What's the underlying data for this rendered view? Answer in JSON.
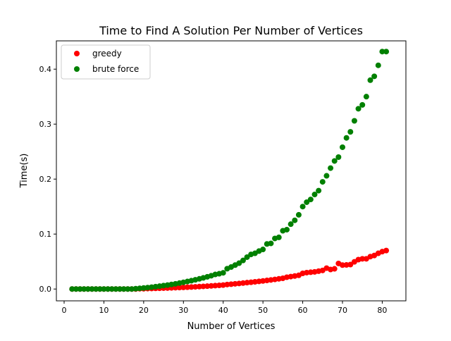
{
  "chart_data": {
    "type": "scatter",
    "title": "Time to Find A Solution Per Number of Vertices",
    "xlabel": "Number of Vertices",
    "ylabel": "Time(s)",
    "xlim": [
      -1.95,
      85.95
    ],
    "ylim": [
      -0.0215,
      0.4515
    ],
    "xticks": [
      0,
      10,
      20,
      30,
      40,
      50,
      60,
      70,
      80
    ],
    "xtick_labels": [
      "0",
      "10",
      "20",
      "30",
      "40",
      "50",
      "60",
      "70",
      "80"
    ],
    "yticks": [
      0.0,
      0.1,
      0.2,
      0.3,
      0.4
    ],
    "ytick_labels": [
      "0.0",
      "0.1",
      "0.2",
      "0.3",
      "0.4"
    ],
    "grid": false,
    "legend_position": "upper-left",
    "x": [
      2,
      3,
      4,
      5,
      6,
      7,
      8,
      9,
      10,
      11,
      12,
      13,
      14,
      15,
      16,
      17,
      18,
      19,
      20,
      21,
      22,
      23,
      24,
      25,
      26,
      27,
      28,
      29,
      30,
      31,
      32,
      33,
      34,
      35,
      36,
      37,
      38,
      39,
      40,
      41,
      42,
      43,
      44,
      45,
      46,
      47,
      48,
      49,
      50,
      51,
      52,
      53,
      54,
      55,
      56,
      57,
      58,
      59,
      60,
      61,
      62,
      63,
      64,
      65,
      66,
      67,
      68,
      69,
      70,
      71,
      72,
      73,
      74,
      75,
      76,
      77,
      78,
      79,
      80,
      81
    ],
    "series": [
      {
        "name": "greedy",
        "color": "#ff0000",
        "values": [
          0,
          0,
          0,
          0,
          0,
          0,
          0,
          0,
          0,
          0,
          0,
          0,
          0,
          0,
          0,
          0,
          0,
          0.0005,
          0.0005,
          0.0008,
          0.001,
          0.0012,
          0.0014,
          0.0016,
          0.0018,
          0.0021,
          0.0024,
          0.0027,
          0.003,
          0.0033,
          0.0036,
          0.004,
          0.0044,
          0.0048,
          0.0052,
          0.0057,
          0.0062,
          0.0067,
          0.0072,
          0.0082,
          0.0088,
          0.0095,
          0.0101,
          0.0108,
          0.0116,
          0.0123,
          0.0131,
          0.0139,
          0.0147,
          0.0156,
          0.0165,
          0.0175,
          0.0185,
          0.0195,
          0.0215,
          0.0226,
          0.0237,
          0.0249,
          0.0285,
          0.0298,
          0.0305,
          0.0312,
          0.0325,
          0.0338,
          0.038,
          0.0355,
          0.0368,
          0.0465,
          0.0435,
          0.0438,
          0.0445,
          0.0495,
          0.0535,
          0.055,
          0.055,
          0.059,
          0.061,
          0.065,
          0.068,
          0.07
        ]
      },
      {
        "name": "brute force",
        "color": "#008000",
        "values": [
          0,
          0,
          0,
          0,
          0,
          0,
          0,
          0,
          0,
          0,
          0,
          0,
          0,
          0,
          0,
          0,
          0.0006,
          0.0012,
          0.0019,
          0.0026,
          0.0034,
          0.0043,
          0.0052,
          0.0062,
          0.0072,
          0.0083,
          0.0095,
          0.0108,
          0.0122,
          0.0137,
          0.0152,
          0.0168,
          0.0185,
          0.0203,
          0.0222,
          0.0242,
          0.0265,
          0.0278,
          0.0295,
          0.037,
          0.04,
          0.0435,
          0.047,
          0.052,
          0.058,
          0.063,
          0.065,
          0.069,
          0.072,
          0.082,
          0.083,
          0.092,
          0.094,
          0.106,
          0.108,
          0.118,
          0.125,
          0.135,
          0.15,
          0.158,
          0.163,
          0.172,
          0.179,
          0.195,
          0.206,
          0.22,
          0.233,
          0.24,
          0.258,
          0.275,
          0.286,
          0.306,
          0.328,
          0.335,
          0.35,
          0.38,
          0.387,
          0.407,
          0.432,
          0.432
        ]
      }
    ]
  }
}
